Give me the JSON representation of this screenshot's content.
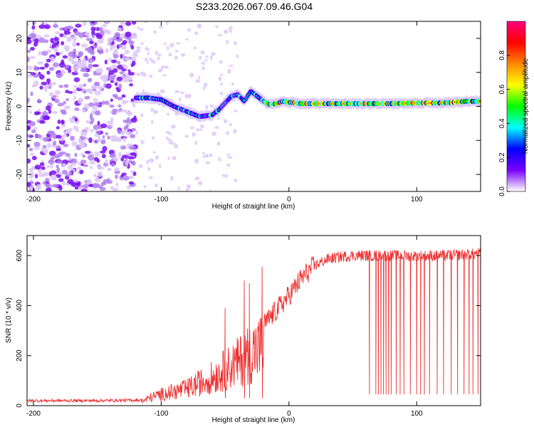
{
  "title": "S233.2026.067.09.46.G04",
  "chart_data": [
    {
      "type": "heatmap",
      "name": "spectrogram",
      "xlabel": "Height of straight line (km)",
      "ylabel": "Frequency (Hz)",
      "xlim": [
        -205,
        150
      ],
      "ylim": [
        -25,
        25
      ],
      "x_ticks": [
        -200,
        -100,
        0,
        100
      ],
      "y_ticks": [
        -20,
        -10,
        0,
        10,
        20
      ],
      "ridge": {
        "x": [
          -120,
          -110,
          -100,
          -90,
          -80,
          -70,
          -60,
          -55,
          -50,
          -45,
          -40,
          -35,
          -30,
          -25,
          -20,
          -15,
          -10,
          -5,
          0,
          10,
          20,
          40,
          60,
          80,
          100,
          120,
          140,
          150
        ],
        "y": [
          2.5,
          2.5,
          2.0,
          0.0,
          -1.5,
          -3.0,
          -2.5,
          -1.0,
          1.0,
          3.0,
          3.5,
          1.5,
          4.5,
          3.0,
          1.5,
          0.5,
          0.8,
          1.5,
          1.2,
          0.8,
          0.8,
          0.8,
          0.8,
          0.8,
          1.0,
          1.0,
          1.5,
          1.5
        ]
      },
      "noise_region_x": [
        -205,
        -120
      ],
      "colorbar": {
        "label": "Normalized spectral amplitude",
        "range": [
          0.0,
          1.0
        ],
        "ticks": [
          "0.0",
          "0.2",
          "0.4",
          "0.6",
          "0.8"
        ],
        "colors": [
          "#ffffff",
          "#7a00ff",
          "#0000ff",
          "#00ffff",
          "#00ff00",
          "#ffff00",
          "#ff8800",
          "#ff0000",
          "#ff0080"
        ]
      }
    },
    {
      "type": "line",
      "name": "snr",
      "xlabel": "Height of straight line (km)",
      "ylabel": "SNR (10 * v/v)",
      "xlim": [
        -205,
        150
      ],
      "ylim": [
        0,
        680
      ],
      "x_ticks": [
        -200,
        -100,
        0,
        100
      ],
      "y_ticks": [
        0,
        200,
        400,
        600
      ],
      "color": "#ee3030",
      "envelope": {
        "x": [
          -205,
          -150,
          -115,
          -110,
          -100,
          -80,
          -60,
          -40,
          -30,
          -20,
          -10,
          0,
          10,
          20,
          30,
          40,
          50,
          60,
          80,
          100,
          120,
          140,
          150
        ],
        "y": [
          20,
          20,
          22,
          40,
          60,
          90,
          150,
          230,
          280,
          320,
          380,
          440,
          510,
          560,
          585,
          595,
          600,
          600,
          600,
          598,
          600,
          605,
          610
        ]
      },
      "spikes": [
        {
          "x": -50,
          "y": 390
        },
        {
          "x": -35,
          "y": 500
        },
        {
          "x": -31,
          "y": 490
        },
        {
          "x": -21,
          "y": 555
        }
      ],
      "dropouts": [
        63,
        68,
        70,
        72,
        74,
        76,
        78,
        80,
        84,
        87,
        90,
        95,
        100,
        103,
        106,
        110,
        116,
        121,
        127,
        132,
        137,
        141,
        144,
        148
      ],
      "dropout_level": 45
    }
  ]
}
